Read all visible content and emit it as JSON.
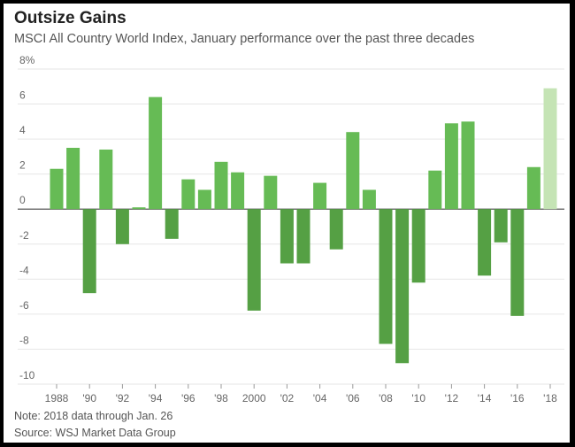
{
  "chart_data": {
    "type": "bar",
    "title": "Outsize Gains",
    "subtitle": "MSCI All Country World Index, January performance over the past three decades",
    "categories": [
      "1988",
      "1989",
      "1990",
      "1991",
      "1992",
      "1993",
      "1994",
      "1995",
      "1996",
      "1997",
      "1998",
      "1999",
      "2000",
      "2001",
      "2002",
      "2003",
      "2004",
      "2005",
      "2006",
      "2007",
      "2008",
      "2009",
      "2010",
      "2011",
      "2012",
      "2013",
      "2014",
      "2015",
      "2016",
      "2017",
      "2018"
    ],
    "values": [
      2.3,
      3.5,
      -4.8,
      3.4,
      -2.0,
      0.1,
      6.4,
      -1.7,
      1.7,
      1.1,
      2.7,
      2.1,
      -5.8,
      1.9,
      -3.1,
      -3.1,
      1.5,
      -2.3,
      4.4,
      1.1,
      -7.7,
      -8.8,
      -4.2,
      2.2,
      4.9,
      5.0,
      -3.8,
      -1.9,
      -6.1,
      2.4,
      6.9
    ],
    "ylim": [
      -10,
      8
    ],
    "yticks": [
      {
        "value": 8,
        "label": "8%"
      },
      {
        "value": 6,
        "label": "6"
      },
      {
        "value": 4,
        "label": "4"
      },
      {
        "value": 2,
        "label": "2"
      },
      {
        "value": 0,
        "label": "0"
      },
      {
        "value": -2,
        "label": "-2"
      },
      {
        "value": -4,
        "label": "-4"
      },
      {
        "value": -6,
        "label": "-6"
      },
      {
        "value": -8,
        "label": "-8"
      },
      {
        "value": -10,
        "label": "-10"
      }
    ],
    "xtick_labels": [
      "1988",
      "'90",
      "'92",
      "'94",
      "'96",
      "'98",
      "2000",
      "'02",
      "'04",
      "'06",
      "'08",
      "'10",
      "'12",
      "'14",
      "'16",
      "'18"
    ],
    "grid": true,
    "colors": {
      "positive": "#66bb55",
      "negative": "#55a044",
      "partial": "#c5e4b5",
      "grid": "#e6e6e6"
    },
    "note": "Note: 2018 data through Jan. 26",
    "source": "Source: WSJ Market Data Group"
  }
}
